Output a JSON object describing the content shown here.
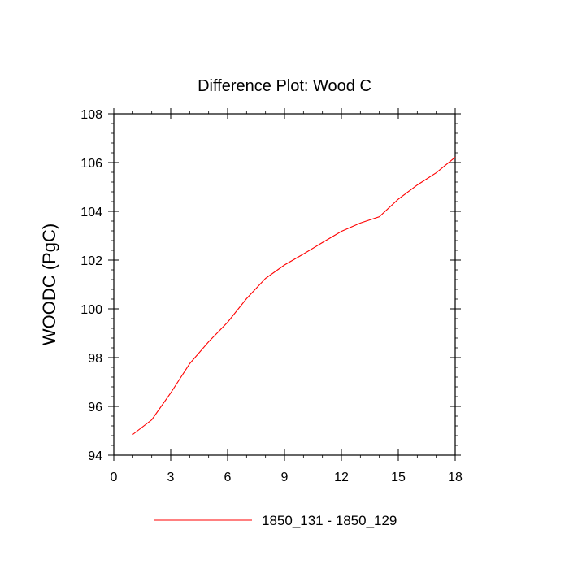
{
  "chart_data": {
    "type": "line",
    "title": "Difference Plot: Wood C",
    "xlabel": "",
    "ylabel": "WOODC  (PgC)",
    "xlim": [
      0,
      18
    ],
    "ylim": [
      94,
      108
    ],
    "x_ticks": [
      "0",
      "3",
      "6",
      "9",
      "12",
      "15",
      "18"
    ],
    "y_ticks": [
      "94",
      "96",
      "98",
      "100",
      "102",
      "104",
      "106",
      "108"
    ],
    "grid": false,
    "legend_position": "bottom-center",
    "series": [
      {
        "name": "1850_131 - 1850_129",
        "color": "#ff0000",
        "x": [
          1,
          2,
          3,
          4,
          5,
          6,
          7,
          8,
          9,
          10,
          11,
          12,
          13,
          14,
          15,
          16,
          17,
          18
        ],
        "y": [
          94.85,
          95.45,
          96.55,
          97.75,
          98.65,
          99.45,
          100.42,
          101.25,
          101.8,
          102.25,
          102.72,
          103.18,
          103.52,
          103.78,
          104.5,
          105.08,
          105.58,
          106.22
        ]
      }
    ]
  }
}
